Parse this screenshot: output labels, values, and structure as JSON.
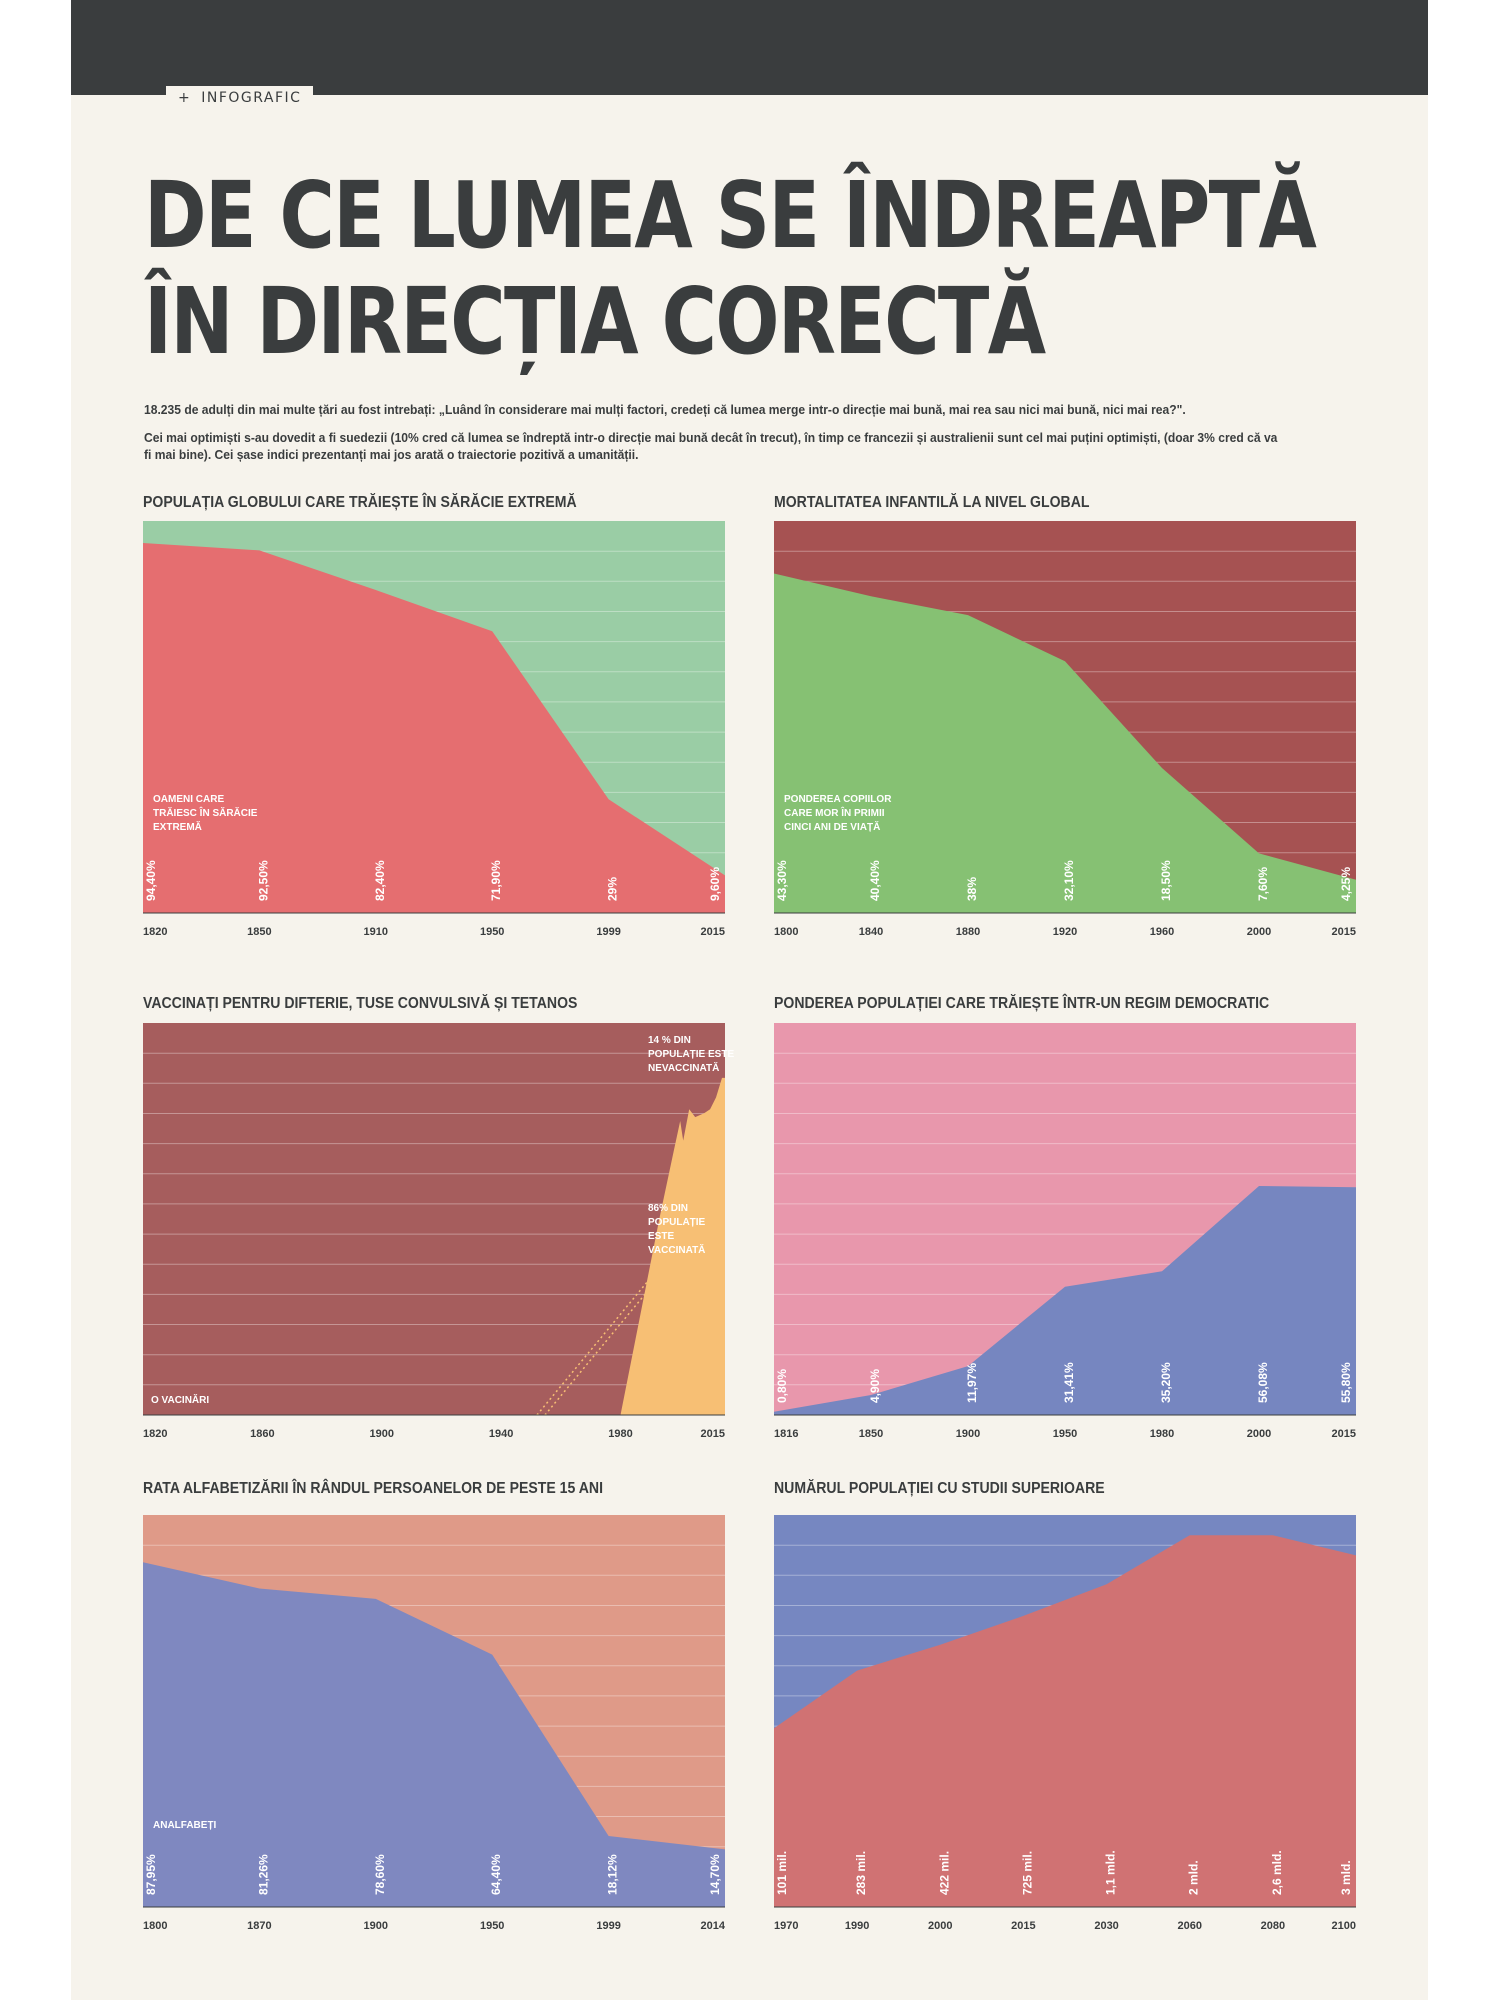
{
  "section_tag": "INFOGRAFIC",
  "title_line1": "DE CE LUMEA SE ÎNDREAPTĂ",
  "title_line2": "ÎN DIRECȚIA CORECTĂ",
  "intro_p1": "18.235 de adulți din mai multe țări au fost intrebați: „Luând în considerare mai mulți factori, credeți că lumea merge intr-o direcție mai bună, mai rea sau nici mai bună, nici mai rea?\".",
  "intro_p2": "Cei mai optimiști s-au dovedit a fi suedezii (10% cred că lumea se îndreptă intr-o direcție mai bună decât în trecut), în timp ce francezii și australienii sunt cel mai puțini optimiști, (doar 3% cred că va fi mai bine). Cei șase indici prezentanți mai jos arată o traiectorie pozitivă a umanității.",
  "colors": {
    "dark": "#3a3d3e",
    "background": "#f6f3ec"
  },
  "chart_data": [
    {
      "type": "area",
      "title": "POPULAȚIA GLOBULUI CARE TRĂIEȘTE ÎN SĂRĂCIE EXTREMĂ",
      "x": [
        "1820",
        "1850",
        "1910",
        "1950",
        "1999",
        "2015"
      ],
      "values": [
        94.4,
        92.5,
        82.4,
        71.9,
        29,
        9.6
      ],
      "value_labels": [
        "94,40%",
        "92,50%",
        "82,40%",
        "71,90%",
        "29%",
        "9,60%"
      ],
      "series_label": [
        "OAMENI CARE",
        "TRĂIESC ÎN SĂRĂCIE",
        "EXTREMĂ"
      ],
      "ylim": [
        0,
        100
      ],
      "grid": true,
      "colors": {
        "background": "#9acda5",
        "area": "#e56e70",
        "grid": "#ffffff"
      }
    },
    {
      "type": "area",
      "title": "MORTALITATEA INFANTILĂ LA NIVEL GLOBAL",
      "x": [
        "1800",
        "1840",
        "1880",
        "1920",
        "1960",
        "2000",
        "2015"
      ],
      "values": [
        43.3,
        40.4,
        38,
        32.1,
        18.5,
        7.6,
        4.25
      ],
      "value_labels": [
        "43,30%",
        "40,40%",
        "38%",
        "32,10%",
        "18,50%",
        "7,60%",
        "4,25%"
      ],
      "series_label": [
        "PONDEREA COPIILOR",
        "CARE MOR ÎN PRIMII",
        "CINCI ANI DE VIAȚĂ"
      ],
      "ylim": [
        0,
        50
      ],
      "grid": true,
      "colors": {
        "background": "#a65252",
        "area": "#86c173",
        "grid": "#ffffff"
      }
    },
    {
      "type": "area",
      "title": "VACCINAȚI PENTRU DIFTERIE, TUSE CONVULSIVĂ ȘI TETANOS",
      "x_ticks": [
        "1820",
        "1860",
        "1900",
        "1940",
        "1980",
        "2015"
      ],
      "x_range": [
        1820,
        2015
      ],
      "points": [
        [
          1980,
          0
        ],
        [
          1993,
          50
        ],
        [
          1998,
          68
        ],
        [
          2000,
          75
        ],
        [
          2001,
          70
        ],
        [
          2003,
          78
        ],
        [
          2005,
          76
        ],
        [
          2008,
          77
        ],
        [
          2010,
          78
        ],
        [
          2012,
          81
        ],
        [
          2014,
          86
        ],
        [
          2015,
          86
        ]
      ],
      "estimated_line": [
        [
          1952,
          0
        ],
        [
          1989,
          34
        ]
      ],
      "labels": {
        "zero": "O VACINĂRI",
        "unvaccinated": [
          "14 % DIN",
          "POPULAȚIE ESTE",
          "NEVACCINATĂ"
        ],
        "vaccinated": [
          "86% DIN",
          "POPULAȚIE",
          "ESTE",
          "VACCINATĂ"
        ]
      },
      "ylim": [
        0,
        100
      ],
      "grid": true,
      "colors": {
        "background": "#a65d5d",
        "area": "#f7bf74",
        "grid": "#ffffff",
        "dotted": "#f7bf74"
      }
    },
    {
      "type": "area",
      "title": "PONDEREA POPULAȚIEI CARE TRĂIEȘTE ÎNTR-UN REGIM DEMOCRATIC",
      "x": [
        "1816",
        "1850",
        "1900",
        "1950",
        "1980",
        "2000",
        "2015"
      ],
      "values": [
        0.8,
        4.9,
        11.97,
        31.41,
        35.2,
        56.08,
        55.8
      ],
      "value_labels": [
        "0,80%",
        "4,90%",
        "11,97%",
        "31,41%",
        "35,20%",
        "56,08%",
        "55,80%"
      ],
      "ylim": [
        0,
        96
      ],
      "grid": true,
      "colors": {
        "background": "#e897ac",
        "area": "#7686c0",
        "grid": "#ffffff"
      }
    },
    {
      "type": "area",
      "title": "RATA ALFABETIZĂRII ÎN RÂNDUL PERSOANELOR DE PESTE 15 ANI",
      "x": [
        "1800",
        "1870",
        "1900",
        "1950",
        "1999",
        "2014"
      ],
      "values": [
        87.95,
        81.26,
        78.6,
        64.4,
        18.12,
        14.7
      ],
      "value_labels": [
        "87,95%",
        "81,26%",
        "78,60%",
        "64,40%",
        "18,12%",
        "14,70%"
      ],
      "series_label": [
        "ANALFABEȚI"
      ],
      "ylim": [
        0,
        100
      ],
      "grid": true,
      "colors": {
        "background": "#df9a88",
        "area": "#7f88c0",
        "grid": "#ffffff"
      }
    },
    {
      "type": "area",
      "title": "NUMĂRUL POPULAȚIEI CU STUDII SUPERIOARE",
      "x": [
        "1970",
        "1990",
        "2000",
        "2015",
        "2030",
        "2060",
        "2080",
        "2100"
      ],
      "values": [
        0.101,
        0.283,
        0.422,
        0.725,
        1.1,
        2,
        2.6,
        3
      ],
      "value_labels": [
        "101 mil.",
        "283 mil.",
        "422 mil.",
        "725 mil.",
        "1,1 mld.",
        "2 mld.",
        "2,6 mld.",
        "3 mld."
      ],
      "shape": [
        62,
        82,
        91,
        101,
        112,
        129,
        129,
        122
      ],
      "ylim": [
        0,
        136
      ],
      "grid": true,
      "colors": {
        "background": "#7687c1",
        "area": "#d07273",
        "grid": "#ffffff"
      }
    }
  ]
}
